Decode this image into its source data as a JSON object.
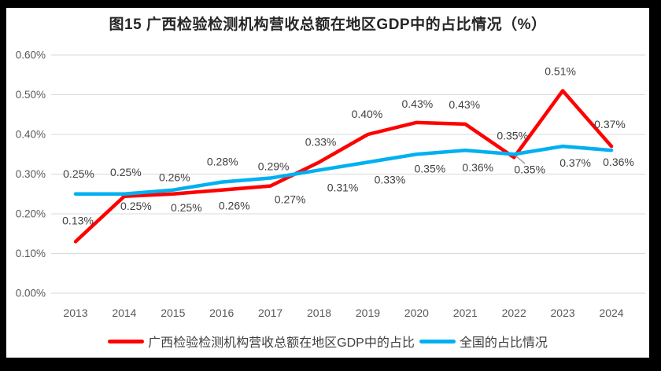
{
  "window": {
    "frame_color": "#000000",
    "background": "#ffffff"
  },
  "chart_data": {
    "type": "line",
    "title": "图15 广西检验检测机构营收总额在地区GDP中的占比情况（%）",
    "x": [
      "2013",
      "2014",
      "2015",
      "2016",
      "2017",
      "2018",
      "2019",
      "2020",
      "2021",
      "2022",
      "2023",
      "2024"
    ],
    "series": [
      {
        "name": "广西检验检测机构营收总额在地区GDP中的占比",
        "color": "#FF0000",
        "values": [
          0.13,
          0.25,
          0.25,
          0.26,
          0.27,
          0.33,
          0.4,
          0.43,
          0.43,
          0.35,
          0.51,
          0.37
        ],
        "labels": [
          "0.13%",
          "0.25%",
          "0.25%",
          "0.26%",
          "0.27%",
          "0.33%",
          "0.40%",
          "0.43%",
          "0.43%",
          "0.35%",
          "0.51%",
          "0.37%"
        ]
      },
      {
        "name": "全国的占比情况",
        "color": "#00B0F0",
        "values": [
          0.25,
          0.25,
          0.26,
          0.28,
          0.29,
          0.31,
          0.33,
          0.35,
          0.36,
          0.35,
          0.37,
          0.36
        ],
        "labels": [
          "0.25%",
          "0.25%",
          "0.26%",
          "0.28%",
          "0.29%",
          "0.31%",
          "0.33%",
          "0.35%",
          "0.36%",
          "0.35%",
          "0.37%",
          "0.36%"
        ]
      }
    ],
    "ylim": [
      0,
      0.6
    ],
    "yticks": [
      "0.00%",
      "0.10%",
      "0.20%",
      "0.30%",
      "0.40%",
      "0.50%",
      "0.60%"
    ],
    "grid": true,
    "data_labels": true,
    "legend_position": "bottom",
    "callout": {
      "series": "全国的占比情况",
      "year": "2022",
      "label": "0.35%"
    }
  },
  "colors": {
    "gridline": "#D9D9D9",
    "axis_text": "#595959",
    "data_label_text": "#404040",
    "leader_line": "#A6A6A6",
    "title_text": "#262626",
    "legend_text": "#404040"
  }
}
